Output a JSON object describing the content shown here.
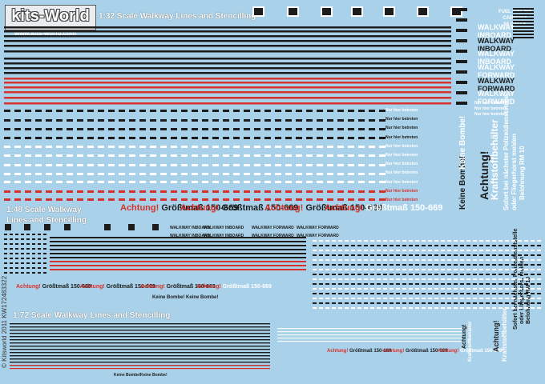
{
  "brand": {
    "logo_text": "kits-World",
    "url": "www.kits-world.com"
  },
  "titles": {
    "scale32": "1:32 Scale Walkway Lines and Stencilling",
    "scale48_l1": "1:48 Scale Walkway",
    "scale48_l2": "Lines and Stencilling",
    "scale72": "1:72 Scale Walkway Lines and Stencilling"
  },
  "side_text": "© Kitsworld 2011 KW172483322",
  "fuel": {
    "l1": "FUEL STD 250",
    "l2": "CAPACITY",
    "l3": "56 GALLS"
  },
  "walkway_labels": {
    "inboard": "WALKWAY INBOARD",
    "forward": "WALKWAY FORWARD"
  },
  "achtung": {
    "word": "Achtung!",
    "rest": "Größtmaß 150-669"
  },
  "nicht_betreten": "Nur hier betreten",
  "keine_bombe": "Keine Bombe!",
  "vertical": {
    "achtung": "Achtung!",
    "kraftstoff": "Kraftstoffbehälter",
    "line1": "Sofort bei nächster Polizeidienststelle",
    "line2": "oder Fliegerhorst melden",
    "line3": "Belohnung RM 10"
  },
  "colors": {
    "bg": "#a9d2ea",
    "dark": "#1c1c1c",
    "red": "#d6322c",
    "white": "#ffffff"
  }
}
